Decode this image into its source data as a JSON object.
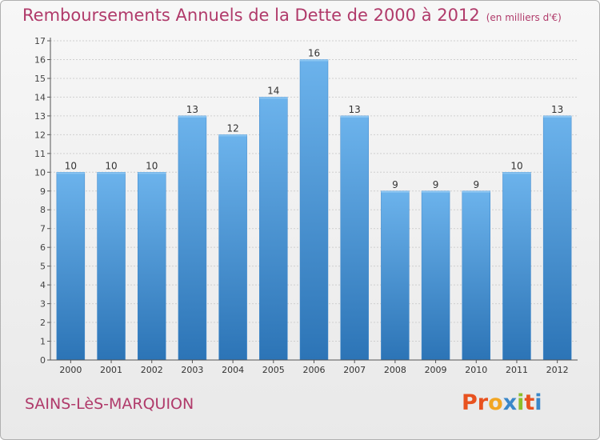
{
  "header": {
    "title": "Remboursements Annuels de la Dette de 2000 à 2012",
    "unit": "(en milliers d'€)"
  },
  "footer": {
    "commune": "SAINS-LèS-MARQUION",
    "logo_text": "Proxiti",
    "logo_colors": [
      "#e8521f",
      "#e8521f",
      "#f2a623",
      "#3a87c9",
      "#8cbe2a",
      "#e8521f",
      "#3a87c9"
    ]
  },
  "colors": {
    "bar": "#4f9de0",
    "bar_light": "#6cb3ec",
    "bar_dark": "#2c74b6",
    "grid": "#cfcfcf",
    "axis": "#555555",
    "title": "#b03a6a"
  },
  "chart_data": {
    "type": "bar",
    "title": "Remboursements Annuels de la Dette de 2000 à 2012",
    "subtitle": "(en milliers d'€)",
    "xlabel": "",
    "ylabel": "",
    "categories": [
      "2000",
      "2001",
      "2002",
      "2003",
      "2004",
      "2005",
      "2006",
      "2007",
      "2008",
      "2009",
      "2010",
      "2011",
      "2012"
    ],
    "values": [
      10,
      10,
      10,
      13,
      12,
      14,
      16,
      13,
      9,
      9,
      9,
      10,
      13
    ],
    "data_labels": [
      "10",
      "10",
      "10",
      "13",
      "12",
      "14",
      "16",
      "13",
      "9",
      "9",
      "9",
      "10",
      "13"
    ],
    "ylim": [
      0,
      17
    ],
    "yticks": [
      0,
      1,
      2,
      3,
      4,
      5,
      6,
      7,
      8,
      9,
      10,
      11,
      12,
      13,
      14,
      15,
      16,
      17
    ],
    "grid": true,
    "legend": "none"
  }
}
